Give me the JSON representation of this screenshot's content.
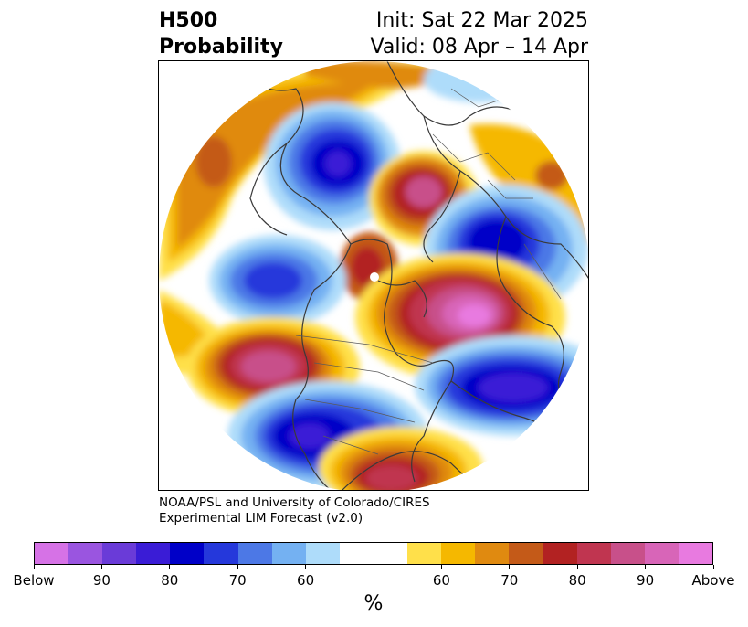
{
  "header": {
    "variable": "H500",
    "field": "Probability",
    "init": "Init: Sat 22 Mar 2025",
    "valid": "Valid: 08 Apr – 14 Apr"
  },
  "credit": {
    "line1": "NOAA/PSL and University of Colorado/CIRES",
    "line2": "Experimental LIM Forecast (v2.0)"
  },
  "colorbar": {
    "unit": "%",
    "ticks": [
      "Below",
      "90",
      "80",
      "70",
      "60",
      "60",
      "70",
      "80",
      "90",
      "Above"
    ],
    "below_colors": [
      "#d672e6",
      "#9a55e0",
      "#6a3bd8",
      "#3a1cd6",
      "#0000c8",
      "#2538db",
      "#4c78e6",
      "#74b1f2",
      "#aedcfa"
    ],
    "neutral_color": "#ffffff",
    "above_colors": [
      "#ffe04a",
      "#f5b800",
      "#e08a10",
      "#c45a18",
      "#b22222",
      "#c03550",
      "#c8508a",
      "#d865b8",
      "#e87ae0"
    ]
  }
}
